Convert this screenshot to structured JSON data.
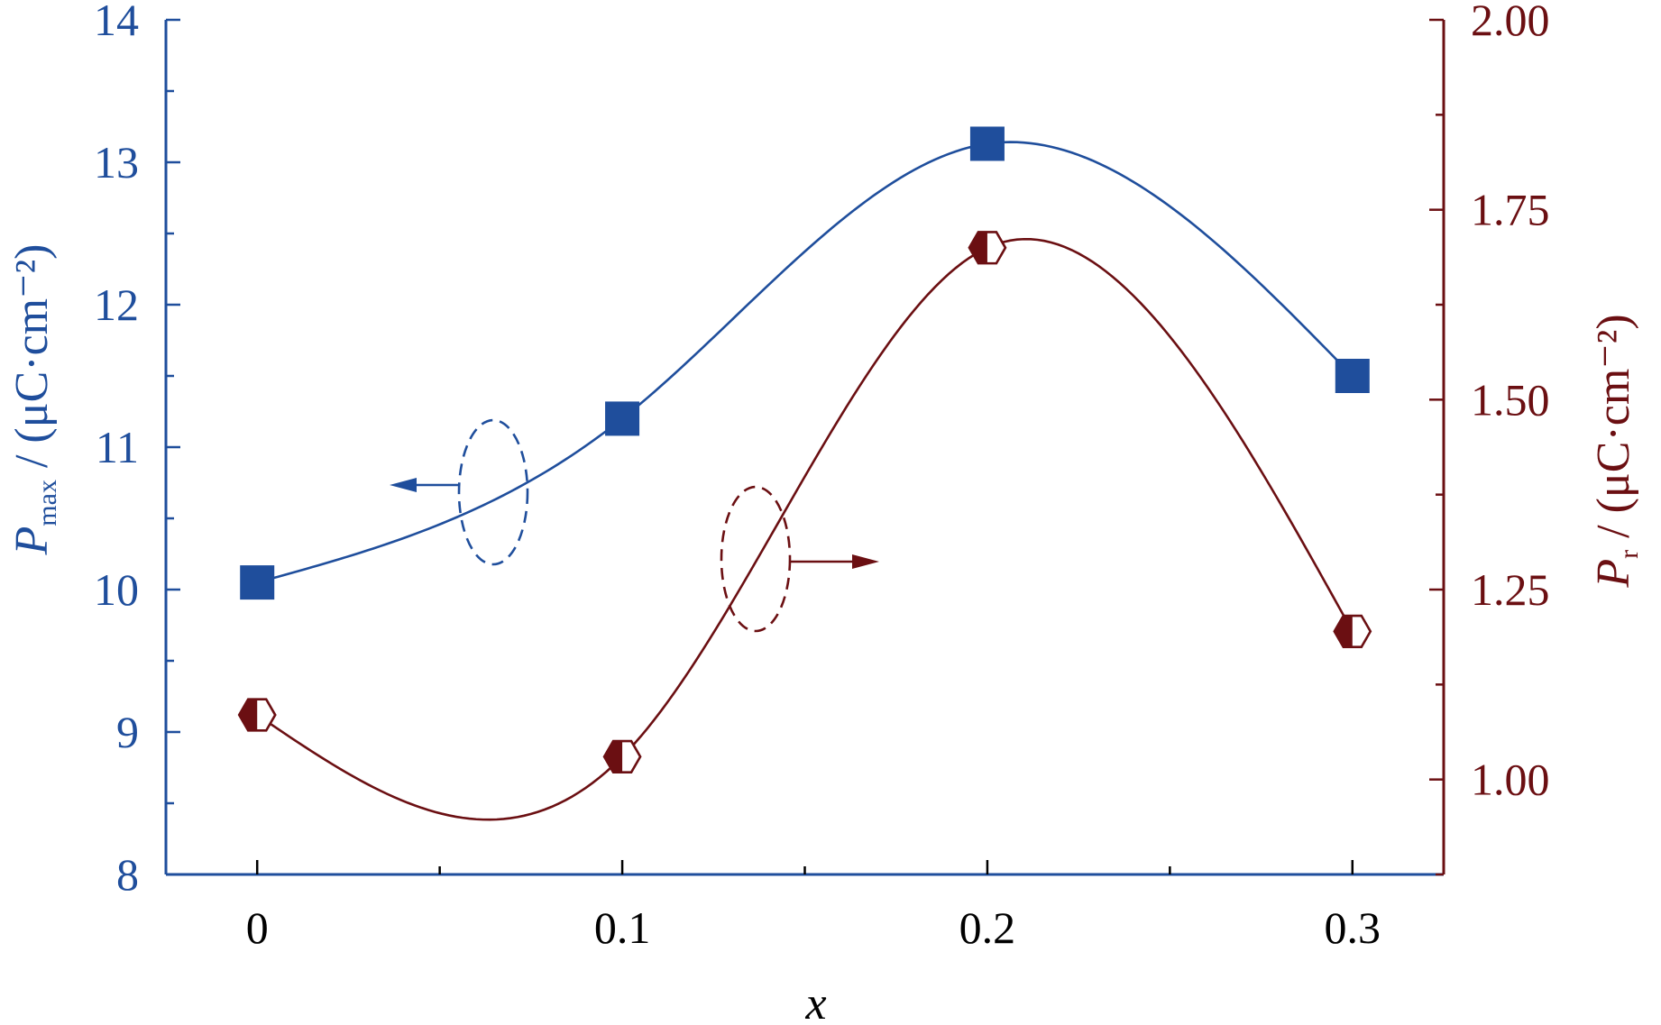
{
  "chart_data": {
    "type": "line",
    "x_axis": {
      "label": "x",
      "ticks": [
        0,
        0.1,
        0.2,
        0.3
      ],
      "tick_labels": [
        "0",
        "0.1",
        "0.2",
        "0.3"
      ],
      "range": [
        -0.025,
        0.325
      ]
    },
    "y_axis_left": {
      "label_main": "P",
      "label_sub": "max",
      "label_unit": " / (μC·cm⁻²)",
      "ticks": [
        8,
        9,
        10,
        11,
        12,
        13,
        14
      ],
      "tick_labels": [
        "8",
        "9",
        "10",
        "11",
        "12",
        "13",
        "14"
      ],
      "range": [
        8,
        14
      ],
      "color": "#1f4e9c"
    },
    "y_axis_right": {
      "label_main": "P",
      "label_sub": "r",
      "label_unit": " / (μC·cm⁻²)",
      "ticks": [
        1.0,
        1.25,
        1.5,
        1.75,
        2.0
      ],
      "tick_labels": [
        "1.00",
        "1.25",
        "1.50",
        "1.75",
        "2.00"
      ],
      "range": [
        0.875,
        2.0
      ],
      "color": "#6b0f12"
    },
    "series": [
      {
        "axis": "left",
        "marker": "square",
        "color": "#1f4e9c",
        "x": [
          0,
          0.1,
          0.2,
          0.3
        ],
        "y": [
          10.05,
          11.2,
          13.13,
          11.5
        ]
      },
      {
        "axis": "right",
        "marker": "half-filled-hexagon",
        "color": "#6b0f12",
        "x": [
          0,
          0.1,
          0.2,
          0.3
        ],
        "y": [
          1.085,
          1.03,
          1.7,
          1.195
        ]
      }
    ],
    "grid": false,
    "legend": "none"
  }
}
